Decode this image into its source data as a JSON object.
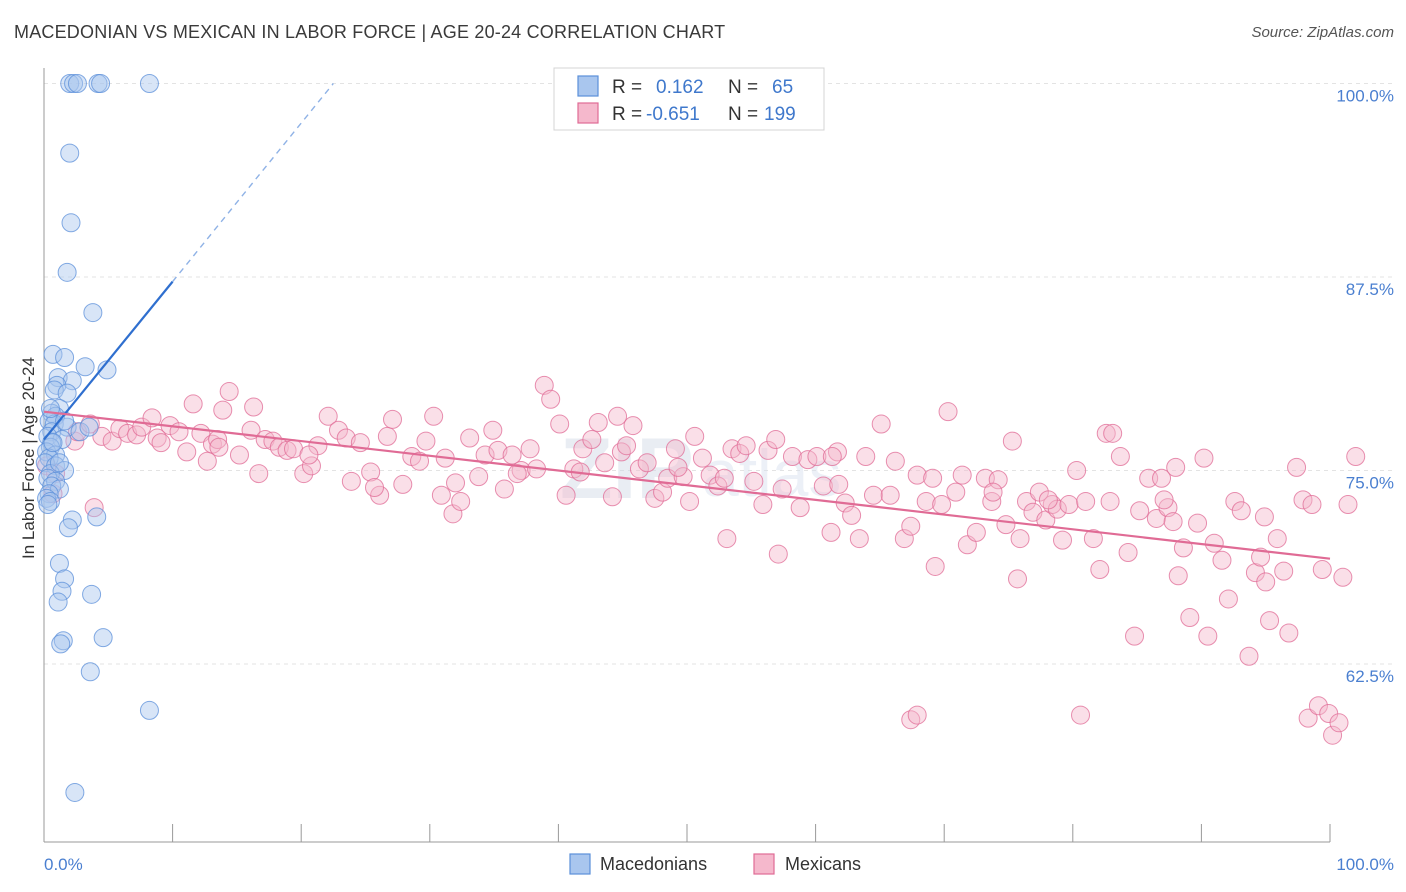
{
  "header": {
    "title": "MACEDONIAN VS MEXICAN IN LABOR FORCE | AGE 20-24 CORRELATION CHART",
    "source": "Source: ZipAtlas.com"
  },
  "chart_data": {
    "type": "scatter",
    "ylabel": "In Labor Force | Age 20-24",
    "xlim": [
      0,
      100
    ],
    "ylim": [
      51,
      101
    ],
    "x_tick_labels": [
      "0.0%",
      "100.0%"
    ],
    "y_ticks": [
      {
        "value": 100.0,
        "label": "100.0%"
      },
      {
        "value": 87.5,
        "label": "87.5%"
      },
      {
        "value": 75.0,
        "label": "75.0%"
      },
      {
        "value": 62.5,
        "label": "62.5%"
      }
    ],
    "grid": true,
    "legend_position": "top-center",
    "watermark": {
      "bold": "ZIP",
      "light": "atlas"
    },
    "legend": [
      {
        "r_label": "R =",
        "r_value": "0.162",
        "n_label": "N =",
        "n_value": "65"
      },
      {
        "r_label": "R =",
        "r_value": "-0.651",
        "n_label": "N =",
        "n_value": "199"
      }
    ],
    "series": [
      {
        "name": "Macedonians",
        "color": "#5b8fd9",
        "fill": "#a9c6ee",
        "trend": {
          "x0": 0,
          "y0": 77.0,
          "x1": 10,
          "y1": 87.2,
          "dash_to_x": 22.5,
          "dash_to_y": 100.0
        },
        "points": [
          [
            2,
            100
          ],
          [
            2.3,
            100
          ],
          [
            2.6,
            100
          ],
          [
            4.2,
            100
          ],
          [
            4.4,
            100
          ],
          [
            8.2,
            100
          ],
          [
            2,
            95.5
          ],
          [
            2.1,
            91
          ],
          [
            1.8,
            87.8
          ],
          [
            3.8,
            85.2
          ],
          [
            0.7,
            82.5
          ],
          [
            1.6,
            82.3
          ],
          [
            3.2,
            81.7
          ],
          [
            4.9,
            81.5
          ],
          [
            1.1,
            81
          ],
          [
            2.2,
            80.8
          ],
          [
            1,
            80.5
          ],
          [
            0.8,
            80.2
          ],
          [
            1.8,
            80
          ],
          [
            1.2,
            79
          ],
          [
            0.6,
            78.7
          ],
          [
            0.9,
            78.5
          ],
          [
            0.4,
            78.2
          ],
          [
            0.8,
            78
          ],
          [
            1.8,
            77.8
          ],
          [
            0.6,
            77.5
          ],
          [
            0.3,
            77.2
          ],
          [
            1.4,
            77
          ],
          [
            0.6,
            76.8
          ],
          [
            0.5,
            76.5
          ],
          [
            0.2,
            76.2
          ],
          [
            0.9,
            76
          ],
          [
            0.4,
            75.8
          ],
          [
            0.1,
            75.5
          ],
          [
            0.9,
            75.3
          ],
          [
            1.6,
            75
          ],
          [
            0.5,
            74.8
          ],
          [
            0.3,
            74.5
          ],
          [
            0.9,
            74.3
          ],
          [
            0.6,
            74
          ],
          [
            1.2,
            73.8
          ],
          [
            0.4,
            73.5
          ],
          [
            0.2,
            73.2
          ],
          [
            0.5,
            73
          ],
          [
            0.3,
            72.8
          ],
          [
            4.1,
            72
          ],
          [
            2.2,
            71.8
          ],
          [
            1.9,
            71.3
          ],
          [
            1.2,
            69
          ],
          [
            1.6,
            68
          ],
          [
            1.4,
            67.2
          ],
          [
            3.7,
            67
          ],
          [
            1.1,
            66.5
          ],
          [
            1.5,
            64
          ],
          [
            1.3,
            63.8
          ],
          [
            4.6,
            64.2
          ],
          [
            3.6,
            62
          ],
          [
            8.2,
            59.5
          ],
          [
            2.4,
            54.2
          ],
          [
            1.6,
            78.2
          ],
          [
            2.8,
            77.5
          ],
          [
            0.5,
            79
          ],
          [
            3.5,
            77.8
          ],
          [
            1.2,
            75.5
          ],
          [
            0.7,
            76.8
          ]
        ]
      },
      {
        "name": "Mexicans",
        "color": "#e06b95",
        "fill": "#f5b8cc",
        "trend": {
          "x0": 0,
          "y0": 78.8,
          "x1": 100,
          "y1": 69.3
        },
        "points": [
          [
            0.2,
            75.3
          ],
          [
            0.9,
            74.8
          ],
          [
            0.7,
            73.5
          ],
          [
            3.9,
            72.6
          ],
          [
            2.4,
            76.9
          ],
          [
            2.6,
            77.5
          ],
          [
            3.6,
            78.0
          ],
          [
            4.5,
            77.2
          ],
          [
            5.3,
            76.9
          ],
          [
            5.9,
            77.7
          ],
          [
            6.5,
            77.4
          ],
          [
            7.2,
            77.3
          ],
          [
            7.6,
            77.8
          ],
          [
            8.4,
            78.4
          ],
          [
            8.8,
            77.1
          ],
          [
            9.1,
            76.8
          ],
          [
            9.8,
            77.9
          ],
          [
            10.5,
            77.5
          ],
          [
            11.1,
            76.2
          ],
          [
            11.6,
            79.3
          ],
          [
            12.2,
            77.4
          ],
          [
            12.7,
            75.6
          ],
          [
            13.1,
            76.7
          ],
          [
            13.5,
            77.0
          ],
          [
            13.9,
            78.9
          ],
          [
            14.4,
            80.1
          ],
          [
            15.2,
            76.0
          ],
          [
            16.1,
            77.6
          ],
          [
            16.7,
            74.8
          ],
          [
            17.2,
            77.0
          ],
          [
            17.8,
            76.9
          ],
          [
            18.3,
            76.5
          ],
          [
            18.9,
            76.3
          ],
          [
            19.4,
            76.4
          ],
          [
            20.2,
            74.8
          ],
          [
            20.8,
            75.3
          ],
          [
            21.3,
            76.6
          ],
          [
            22.1,
            78.5
          ],
          [
            22.9,
            77.6
          ],
          [
            23.5,
            77.1
          ],
          [
            23.9,
            74.3
          ],
          [
            24.6,
            76.8
          ],
          [
            25.4,
            74.9
          ],
          [
            26.1,
            73.4
          ],
          [
            26.7,
            77.2
          ],
          [
            27.1,
            78.3
          ],
          [
            27.9,
            74.1
          ],
          [
            28.6,
            75.9
          ],
          [
            29.2,
            75.6
          ],
          [
            29.7,
            76.9
          ],
          [
            30.3,
            78.5
          ],
          [
            30.9,
            73.4
          ],
          [
            31.2,
            75.8
          ],
          [
            31.8,
            72.2
          ],
          [
            32.4,
            73.0
          ],
          [
            33.1,
            77.1
          ],
          [
            33.8,
            74.6
          ],
          [
            34.3,
            76.0
          ],
          [
            34.9,
            77.6
          ],
          [
            35.3,
            76.3
          ],
          [
            35.8,
            73.8
          ],
          [
            36.4,
            76.0
          ],
          [
            37.1,
            75.0
          ],
          [
            37.8,
            76.4
          ],
          [
            38.3,
            75.1
          ],
          [
            38.9,
            80.5
          ],
          [
            39.4,
            79.6
          ],
          [
            40.1,
            78.0
          ],
          [
            40.6,
            73.4
          ],
          [
            41.2,
            75.1
          ],
          [
            41.9,
            76.4
          ],
          [
            42.6,
            77.0
          ],
          [
            43.1,
            78.1
          ],
          [
            43.6,
            75.5
          ],
          [
            44.2,
            73.3
          ],
          [
            44.9,
            76.2
          ],
          [
            45.3,
            76.6
          ],
          [
            45.8,
            77.9
          ],
          [
            46.3,
            75.1
          ],
          [
            46.9,
            75.5
          ],
          [
            47.5,
            73.2
          ],
          [
            48.1,
            73.6
          ],
          [
            48.5,
            74.5
          ],
          [
            49.1,
            76.4
          ],
          [
            49.7,
            74.6
          ],
          [
            50.2,
            73.0
          ],
          [
            50.6,
            77.2
          ],
          [
            51.2,
            75.8
          ],
          [
            51.8,
            74.7
          ],
          [
            52.4,
            74.0
          ],
          [
            52.9,
            74.5
          ],
          [
            53.5,
            76.4
          ],
          [
            54.1,
            76.1
          ],
          [
            54.6,
            76.6
          ],
          [
            55.2,
            74.3
          ],
          [
            55.9,
            72.8
          ],
          [
            56.3,
            76.3
          ],
          [
            56.9,
            77.0
          ],
          [
            57.4,
            73.8
          ],
          [
            58.2,
            75.9
          ],
          [
            58.8,
            72.6
          ],
          [
            59.4,
            75.7
          ],
          [
            60.1,
            75.9
          ],
          [
            60.6,
            74.0
          ],
          [
            61.2,
            71.0
          ],
          [
            61.8,
            74.1
          ],
          [
            62.3,
            72.9
          ],
          [
            62.8,
            72.1
          ],
          [
            63.4,
            70.6
          ],
          [
            63.9,
            75.9
          ],
          [
            64.5,
            73.4
          ],
          [
            65.1,
            78.0
          ],
          [
            65.8,
            73.4
          ],
          [
            66.2,
            75.6
          ],
          [
            66.9,
            70.6
          ],
          [
            67.4,
            71.4
          ],
          [
            67.9,
            74.7
          ],
          [
            68.6,
            73.0
          ],
          [
            69.1,
            74.5
          ],
          [
            69.8,
            72.8
          ],
          [
            70.3,
            78.8
          ],
          [
            70.9,
            73.6
          ],
          [
            71.4,
            74.7
          ],
          [
            71.8,
            70.2
          ],
          [
            72.5,
            71.0
          ],
          [
            73.2,
            74.5
          ],
          [
            73.7,
            73.0
          ],
          [
            74.2,
            74.4
          ],
          [
            74.8,
            71.5
          ],
          [
            75.3,
            76.9
          ],
          [
            75.9,
            70.6
          ],
          [
            76.4,
            73.0
          ],
          [
            76.9,
            72.3
          ],
          [
            77.4,
            73.6
          ],
          [
            77.9,
            71.8
          ],
          [
            78.4,
            72.8
          ],
          [
            78.8,
            72.5
          ],
          [
            79.2,
            70.5
          ],
          [
            79.7,
            72.8
          ],
          [
            80.3,
            75.0
          ],
          [
            81.0,
            73.0
          ],
          [
            81.6,
            70.6
          ],
          [
            82.1,
            68.6
          ],
          [
            82.6,
            77.4
          ],
          [
            83.1,
            77.4
          ],
          [
            83.7,
            75.9
          ],
          [
            84.3,
            69.7
          ],
          [
            84.8,
            64.3
          ],
          [
            85.2,
            72.4
          ],
          [
            85.9,
            74.5
          ],
          [
            86.5,
            71.9
          ],
          [
            86.9,
            74.5
          ],
          [
            87.4,
            72.6
          ],
          [
            87.8,
            71.7
          ],
          [
            88.2,
            68.2
          ],
          [
            88.6,
            70.0
          ],
          [
            89.1,
            65.5
          ],
          [
            89.7,
            71.6
          ],
          [
            90.2,
            75.8
          ],
          [
            90.5,
            64.3
          ],
          [
            91.0,
            70.3
          ],
          [
            91.6,
            69.2
          ],
          [
            92.1,
            66.7
          ],
          [
            92.6,
            73.0
          ],
          [
            93.1,
            72.4
          ],
          [
            93.7,
            63.0
          ],
          [
            94.2,
            68.4
          ],
          [
            94.6,
            69.4
          ],
          [
            95.0,
            67.8
          ],
          [
            95.3,
            65.3
          ],
          [
            95.9,
            70.6
          ],
          [
            96.4,
            68.5
          ],
          [
            96.8,
            64.5
          ],
          [
            97.4,
            75.2
          ],
          [
            97.9,
            73.1
          ],
          [
            98.3,
            59.0
          ],
          [
            98.6,
            72.8
          ],
          [
            99.1,
            59.8
          ],
          [
            99.4,
            68.6
          ],
          [
            99.9,
            59.3
          ],
          [
            100.2,
            57.9
          ],
          [
            100.7,
            58.7
          ],
          [
            101.0,
            68.1
          ],
          [
            101.4,
            72.8
          ],
          [
            102.0,
            75.9
          ],
          [
            67.4,
            58.9
          ],
          [
            67.9,
            59.2
          ],
          [
            80.6,
            59.2
          ],
          [
            13.6,
            76.5
          ],
          [
            16.3,
            79.1
          ],
          [
            20.6,
            76.0
          ],
          [
            32.0,
            74.2
          ],
          [
            36.8,
            74.8
          ],
          [
            44.6,
            78.5
          ],
          [
            53.1,
            70.6
          ],
          [
            57.1,
            69.6
          ],
          [
            61.7,
            76.2
          ],
          [
            69.3,
            68.8
          ],
          [
            73.8,
            73.6
          ],
          [
            78.1,
            73.1
          ],
          [
            82.9,
            73.0
          ],
          [
            88.0,
            75.2
          ],
          [
            94.9,
            72.0
          ],
          [
            61.3,
            75.9
          ],
          [
            25.7,
            73.9
          ],
          [
            41.7,
            74.9
          ],
          [
            49.3,
            75.2
          ],
          [
            75.7,
            68.0
          ],
          [
            87.1,
            73.1
          ]
        ]
      }
    ]
  }
}
